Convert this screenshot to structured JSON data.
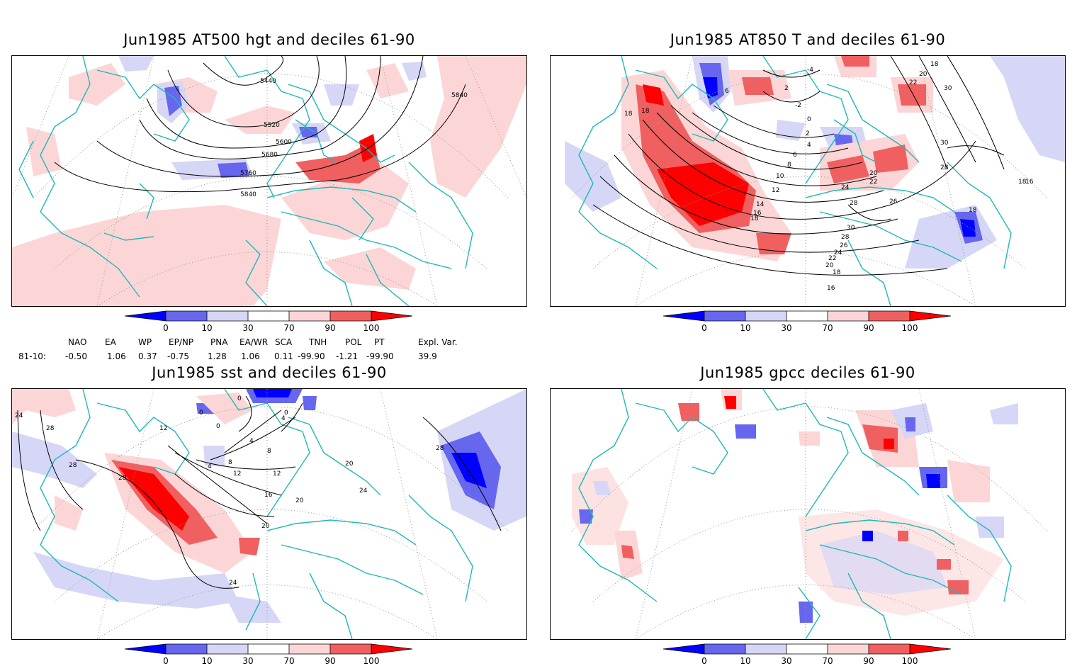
{
  "panels": [
    {
      "id": "hgt500",
      "title": "Jun1985 AT500 hgt and deciles 61-90",
      "contour_labels": [
        "5440",
        "5520",
        "5600",
        "5680",
        "5760",
        "5840",
        "5840"
      ]
    },
    {
      "id": "t850",
      "title": "Jun1985 AT850 T and deciles 61-90",
      "contour_labels": [
        "-4",
        "-2",
        "2",
        "0",
        "2",
        "4",
        "6",
        "6",
        "8",
        "10",
        "12",
        "14",
        "16",
        "18",
        "18",
        "18",
        "20",
        "22",
        "24",
        "26",
        "28",
        "30",
        "28",
        "26",
        "24",
        "22",
        "20",
        "18",
        "16",
        "18",
        "16",
        "28",
        "30",
        "20",
        "22",
        "30",
        "18",
        "18"
      ]
    },
    {
      "id": "sst",
      "title": "Jun1985 sst and deciles 61-90",
      "contour_labels": [
        "24",
        "28",
        "28",
        "28",
        "12",
        "0",
        "0",
        "4",
        "4",
        "8",
        "12",
        "16",
        "20",
        "24",
        "4",
        "8",
        "12",
        "20",
        "20",
        "24",
        "28",
        "0",
        "0"
      ]
    },
    {
      "id": "gpcc",
      "title": "Jun1985 gpcc deciles 61-90",
      "contour_labels": []
    }
  ],
  "colorbar": {
    "tick_labels": [
      "0",
      "10",
      "30",
      "70",
      "90",
      "100"
    ],
    "colors": {
      "dark_blue": "#0000ff",
      "mid_blue": "#6666ee",
      "light_blue": "#d6d6f7",
      "white": "#ffffff",
      "light_red": "#fcd6d6",
      "mid_red": "#f06060",
      "dark_red": "#ff0000"
    }
  },
  "indices": {
    "headers": [
      "NAO",
      "EA",
      "WP",
      "EP/NP",
      "PNA",
      "EA/WR",
      "SCA",
      "TNH",
      "POL",
      "PT",
      "Expl. Var."
    ],
    "row_label": "81-10:",
    "values": [
      "-0.50",
      "1.06",
      "0.37",
      "-0.75",
      "1.28",
      "1.06",
      "0.11",
      "-99.90",
      "-1.21",
      "-99.90",
      "39.9"
    ]
  },
  "colors": {
    "coast": "#20b8b8",
    "grid": "#9a9a9a",
    "contour": "#000000"
  }
}
